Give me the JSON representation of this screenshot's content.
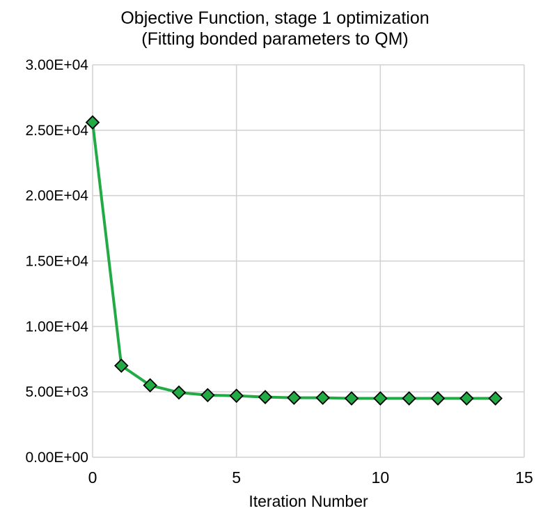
{
  "chart_data": {
    "type": "line",
    "title": "Objective Function, stage 1 optimization",
    "subtitle": "(Fitting bonded parameters to QM)",
    "xlabel": "Iteration Number",
    "ylabel": "",
    "xlim": [
      0,
      15
    ],
    "ylim": [
      0,
      30000
    ],
    "xticks": [
      0,
      5,
      10,
      15
    ],
    "xtick_labels": [
      "0",
      "5",
      "10",
      "15"
    ],
    "yticks": [
      0,
      5000,
      10000,
      15000,
      20000,
      25000,
      30000
    ],
    "ytick_labels": [
      "0.00E+00",
      "5.00E+03",
      "1.00E+04",
      "1.50E+04",
      "2.00E+04",
      "2.50E+04",
      "3.00E+04"
    ],
    "grid": true,
    "legend": "none",
    "series": [
      {
        "color": "#22aa44",
        "marker": "diamond",
        "marker_color": "#22aa44",
        "x": [
          0,
          1,
          2,
          3,
          4,
          5,
          6,
          7,
          8,
          9,
          10,
          11,
          12,
          13,
          14
        ],
        "y": [
          25600,
          7000,
          5500,
          4950,
          4750,
          4700,
          4600,
          4550,
          4550,
          4500,
          4500,
          4500,
          4500,
          4500,
          4500
        ]
      }
    ]
  }
}
